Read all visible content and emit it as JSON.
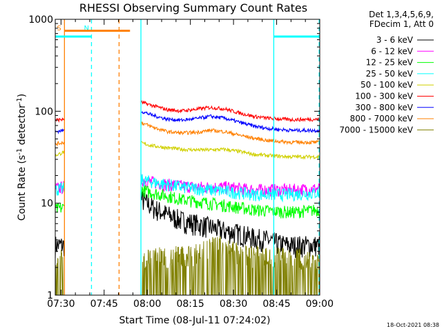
{
  "chart_data": {
    "type": "line",
    "title": "RHESSI Observing Summary Count Rates",
    "xlabel": "Start Time (08-Jul-11 07:24:02)",
    "ylabel_main": "Count Rate (s",
    "ylabel_sup1": "-1",
    "ylabel_mid": " detector",
    "ylabel_sup2": "-1",
    "ylabel_end": ")",
    "yscale": "log",
    "ylim": [
      1,
      1000
    ],
    "xlim_minutes": [
      448.0,
      540.0
    ],
    "xticks": [
      {
        "minute": 450,
        "label": "07:30"
      },
      {
        "minute": 465,
        "label": "07:45"
      },
      {
        "minute": 480,
        "label": "08:00"
      },
      {
        "minute": 495,
        "label": "08:15"
      },
      {
        "minute": 510,
        "label": "08:30"
      },
      {
        "minute": 525,
        "label": "08:45"
      },
      {
        "minute": 540,
        "label": "09:00"
      }
    ],
    "yticks": [
      {
        "value": 1,
        "label": "1"
      },
      {
        "value": 10,
        "label": "10"
      },
      {
        "value": 100,
        "label": "100"
      },
      {
        "value": 1000,
        "label": "1000"
      }
    ],
    "legend_header": [
      "Det 1,3,4,5,6,9,",
      "FDecim 1, Att 0"
    ],
    "data_gap_minutes": [
      451.1,
      477.9
    ],
    "series": [
      {
        "name": "3 - 6 keV",
        "color": "#000000",
        "pts": [
          [
            448.0,
            3.5
          ],
          [
            451.0,
            3.5
          ],
          [
            478.0,
            11
          ],
          [
            482,
            9
          ],
          [
            487,
            7.5
          ],
          [
            492,
            6.5
          ],
          [
            497,
            6
          ],
          [
            502,
            5.5
          ],
          [
            507,
            5
          ],
          [
            512,
            4.7
          ],
          [
            517,
            4.2
          ],
          [
            522,
            4
          ],
          [
            526,
            3.6
          ],
          [
            530,
            3.5
          ],
          [
            540,
            3.5
          ]
        ]
      },
      {
        "name": "6 - 12 keV",
        "color": "#ff00ff",
        "pts": [
          [
            448.0,
            14.5
          ],
          [
            451.0,
            15
          ],
          [
            478.0,
            18
          ],
          [
            482,
            17
          ],
          [
            487,
            16
          ],
          [
            492,
            15.5
          ],
          [
            497,
            15
          ],
          [
            502,
            15
          ],
          [
            507,
            15
          ],
          [
            512,
            14.5
          ],
          [
            517,
            14
          ],
          [
            522,
            14
          ],
          [
            530,
            14
          ],
          [
            540,
            14.5
          ]
        ]
      },
      {
        "name": "12 - 25 keV",
        "color": "#00ff00",
        "pts": [
          [
            448.0,
            8.5
          ],
          [
            451.0,
            9
          ],
          [
            478.0,
            14
          ],
          [
            482,
            13
          ],
          [
            487,
            12
          ],
          [
            492,
            11
          ],
          [
            497,
            10.5
          ],
          [
            502,
            10
          ],
          [
            507,
            9.5
          ],
          [
            512,
            9
          ],
          [
            517,
            8.5
          ],
          [
            522,
            8.3
          ],
          [
            530,
            8
          ],
          [
            540,
            8.5
          ]
        ]
      },
      {
        "name": "25 - 50 keV",
        "color": "#00ffff",
        "pts": [
          [
            448.0,
            14
          ],
          [
            451.0,
            14.5
          ],
          [
            478.0,
            18
          ],
          [
            482,
            17
          ],
          [
            487,
            16
          ],
          [
            492,
            15
          ],
          [
            497,
            14.5
          ],
          [
            502,
            14
          ],
          [
            507,
            13.5
          ],
          [
            512,
            13
          ],
          [
            517,
            12.5
          ],
          [
            522,
            12.5
          ],
          [
            530,
            12.5
          ],
          [
            540,
            13
          ]
        ]
      },
      {
        "name": "50 - 100 keV",
        "color": "#d0d000",
        "pts": [
          [
            448.0,
            33
          ],
          [
            451.0,
            36
          ],
          [
            478.0,
            45
          ],
          [
            482,
            42
          ],
          [
            487,
            40
          ],
          [
            492,
            38.5
          ],
          [
            497,
            38
          ],
          [
            502,
            38
          ],
          [
            507,
            38.5
          ],
          [
            512,
            36.5
          ],
          [
            517,
            34
          ],
          [
            522,
            33
          ],
          [
            530,
            32
          ],
          [
            540,
            32
          ]
        ]
      },
      {
        "name": "100 - 300 keV",
        "color": "#ff0000",
        "pts": [
          [
            448.0,
            80
          ],
          [
            451.0,
            82
          ],
          [
            478.0,
            125
          ],
          [
            482,
            115
          ],
          [
            487,
            104
          ],
          [
            492,
            101
          ],
          [
            497,
            105
          ],
          [
            502,
            110
          ],
          [
            507,
            106
          ],
          [
            512,
            96
          ],
          [
            517,
            88
          ],
          [
            522,
            84
          ],
          [
            530,
            81
          ],
          [
            540,
            82
          ]
        ]
      },
      {
        "name": "300 - 800 keV",
        "color": "#0000ff",
        "pts": [
          [
            448.0,
            60
          ],
          [
            451.0,
            62
          ],
          [
            478.0,
            100
          ],
          [
            482,
            90
          ],
          [
            487,
            82
          ],
          [
            492,
            80
          ],
          [
            497,
            83
          ],
          [
            502,
            88
          ],
          [
            507,
            84
          ],
          [
            512,
            76
          ],
          [
            517,
            69
          ],
          [
            522,
            65
          ],
          [
            530,
            62
          ],
          [
            540,
            62
          ]
        ]
      },
      {
        "name": "800 - 7000 keV",
        "color": "#ff8000",
        "pts": [
          [
            448.0,
            44
          ],
          [
            451.0,
            46
          ],
          [
            478.0,
            75
          ],
          [
            482,
            67
          ],
          [
            487,
            60
          ],
          [
            492,
            58
          ],
          [
            497,
            59
          ],
          [
            502,
            62
          ],
          [
            507,
            60
          ],
          [
            512,
            55
          ],
          [
            517,
            51
          ],
          [
            522,
            48
          ],
          [
            530,
            46
          ],
          [
            540,
            46
          ]
        ]
      },
      {
        "name": "7000 - 15000 keV",
        "color": "#808000",
        "pts": [
          [
            448.0,
            2.0
          ],
          [
            451.0,
            2.0
          ],
          [
            478.0,
            2.0
          ],
          [
            497,
            2.3
          ],
          [
            500,
            2.7
          ],
          [
            509,
            2.7
          ],
          [
            512,
            2.2
          ],
          [
            540,
            2.0
          ]
        ]
      }
    ],
    "markers": [
      {
        "label": "S",
        "color": "#ff8000",
        "dash": false,
        "minute": 451.2
      },
      {
        "label": "N",
        "color": "#00ffff",
        "dash": true,
        "minute": 460.6
      },
      {
        "label": "",
        "color": "#ff8000",
        "dash": true,
        "minute": 470.2
      },
      {
        "label": "",
        "color": "#00ffff",
        "dash": false,
        "minute": 477.8
      },
      {
        "label": "",
        "color": "#00ffff",
        "dash": false,
        "minute": 524.0
      },
      {
        "label": "",
        "color": "#00ffff",
        "dash": true,
        "minute": 539.8
      }
    ],
    "bars": [
      {
        "color": "#ff8000",
        "from": 451.2,
        "to": 474.0,
        "value": 750
      },
      {
        "color": "#00ffff",
        "from": 448.0,
        "to": 460.6,
        "value": 650
      },
      {
        "color": "#00ffff",
        "from": 524.0,
        "to": 539.8,
        "value": 650
      }
    ]
  },
  "footer_date": "18-Oct-2021 08:38"
}
